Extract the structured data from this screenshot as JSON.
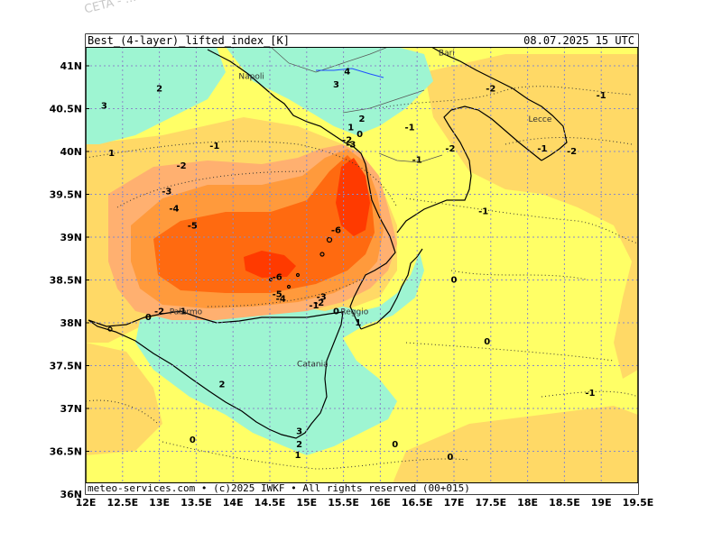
{
  "watermark": "CETA - ...",
  "header": {
    "title": "Best_(4-layer)_lifted_index_[K]",
    "datetime": "08.07.2025 15 UTC"
  },
  "footer": {
    "credit": "meteo-services.com • (c)2025 IWKF • All rights reserved (00+015)"
  },
  "map": {
    "lon_ticks": [
      "12E",
      "12.5E",
      "13E",
      "13.5E",
      "14E",
      "14.5E",
      "15E",
      "15.5E",
      "16E",
      "16.5E",
      "17E",
      "17.5E",
      "18E",
      "18.5E",
      "19E",
      "19.5E"
    ],
    "lat_ticks": [
      "41N",
      "40.5N",
      "40N",
      "39.5N",
      "39N",
      "38.5N",
      "38N",
      "37.5N",
      "37N",
      "36.5N",
      "36N"
    ],
    "lon_range": [
      12,
      19.5
    ],
    "lat_range": [
      36,
      41.3
    ],
    "grid": "dotted",
    "colors": {
      "very_stable": "#9ef5d2",
      "neutral": "#ffff66",
      "slightly_unstable": "#ffd966",
      "unstable": "#ffb070",
      "very_unstable": "#ff9a3c",
      "extreme": "#ff6a10",
      "core": "#ff3a00"
    },
    "cities": [
      {
        "name": "Napoli",
        "lon": 14.25,
        "lat": 40.85
      },
      {
        "name": "Bari",
        "lon": 16.9,
        "lat": 41.12
      },
      {
        "name": "Lecce",
        "lon": 18.17,
        "lat": 40.35
      },
      {
        "name": "Palermo",
        "lon": 13.36,
        "lat": 38.1
      },
      {
        "name": "Catania",
        "lon": 15.08,
        "lat": 37.49
      },
      {
        "name": "Reggio",
        "lon": 15.65,
        "lat": 38.1
      }
    ],
    "contour_labels": [
      {
        "text": "3",
        "lon": 12.25,
        "lat": 40.5
      },
      {
        "text": "2",
        "lon": 13.0,
        "lat": 40.7
      },
      {
        "text": "1",
        "lon": 12.35,
        "lat": 39.95
      },
      {
        "text": "-1",
        "lon": 13.75,
        "lat": 40.03
      },
      {
        "text": "-2",
        "lon": 13.3,
        "lat": 39.8
      },
      {
        "text": "-3",
        "lon": 13.1,
        "lat": 39.5
      },
      {
        "text": "-4",
        "lon": 13.2,
        "lat": 39.3
      },
      {
        "text": "-5",
        "lon": 13.45,
        "lat": 39.1
      },
      {
        "text": "-6",
        "lon": 14.6,
        "lat": 38.5
      },
      {
        "text": "-5",
        "lon": 14.6,
        "lat": 38.3
      },
      {
        "text": "-4",
        "lon": 14.65,
        "lat": 38.25
      },
      {
        "text": "-6",
        "lon": 15.4,
        "lat": 39.05
      },
      {
        "text": "-2",
        "lon": 13.0,
        "lat": 38.1
      },
      {
        "text": "0",
        "lon": 12.85,
        "lat": 38.03
      },
      {
        "text": "-1",
        "lon": 13.3,
        "lat": 38.1
      },
      {
        "text": "-3",
        "lon": 15.2,
        "lat": 38.27
      },
      {
        "text": "-2",
        "lon": 15.17,
        "lat": 38.2
      },
      {
        "text": "-1",
        "lon": 15.1,
        "lat": 38.17
      },
      {
        "text": "0",
        "lon": 15.4,
        "lat": 38.1
      },
      {
        "text": "1",
        "lon": 15.7,
        "lat": 37.97
      },
      {
        "text": "4",
        "lon": 15.55,
        "lat": 40.9
      },
      {
        "text": "3",
        "lon": 15.4,
        "lat": 40.75
      },
      {
        "text": "2",
        "lon": 15.75,
        "lat": 40.35
      },
      {
        "text": "1",
        "lon": 15.6,
        "lat": 40.25
      },
      {
        "text": "0",
        "lon": 15.72,
        "lat": 40.17
      },
      {
        "text": "-2",
        "lon": 15.55,
        "lat": 40.1
      },
      {
        "text": "-3",
        "lon": 15.6,
        "lat": 40.05
      },
      {
        "text": "-1",
        "lon": 16.4,
        "lat": 40.25
      },
      {
        "text": "-1",
        "lon": 16.5,
        "lat": 39.87
      },
      {
        "text": "-2",
        "lon": 16.95,
        "lat": 40.0
      },
      {
        "text": "-2",
        "lon": 17.5,
        "lat": 40.7
      },
      {
        "text": "-1",
        "lon": 19.0,
        "lat": 40.62
      },
      {
        "text": "-1",
        "lon": 18.2,
        "lat": 40.0
      },
      {
        "text": "-2",
        "lon": 18.6,
        "lat": 39.97
      },
      {
        "text": "-1",
        "lon": 17.4,
        "lat": 39.27
      },
      {
        "text": "0",
        "lon": 17.0,
        "lat": 38.47
      },
      {
        "text": "0",
        "lon": 17.45,
        "lat": 37.75
      },
      {
        "text": "-1",
        "lon": 18.85,
        "lat": 37.15
      },
      {
        "text": "2",
        "lon": 13.85,
        "lat": 37.25
      },
      {
        "text": "3",
        "lon": 14.9,
        "lat": 36.7
      },
      {
        "text": "2",
        "lon": 14.9,
        "lat": 36.55
      },
      {
        "text": "1",
        "lon": 14.88,
        "lat": 36.42
      },
      {
        "text": "0",
        "lon": 13.45,
        "lat": 36.6
      },
      {
        "text": "0",
        "lon": 16.2,
        "lat": 36.55
      },
      {
        "text": "0",
        "lon": 16.95,
        "lat": 36.4
      }
    ]
  }
}
